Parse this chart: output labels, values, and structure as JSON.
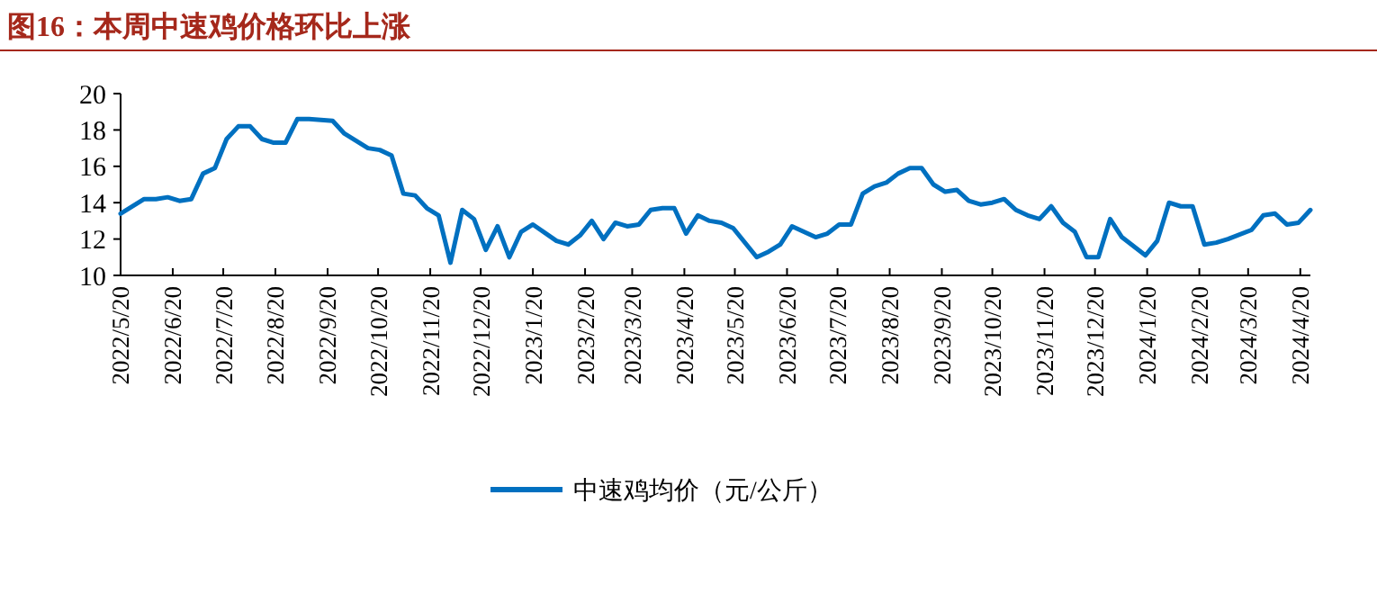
{
  "chart_data": {
    "type": "line",
    "title": "图16：本周中速鸡价格环比上涨",
    "legend": "bottom",
    "grid": false,
    "marker": "none",
    "line_style": "solid",
    "xlim": [
      "2022-05-20",
      "2024-04-26"
    ],
    "ylim": [
      10,
      20
    ],
    "yticks": [
      10,
      12,
      14,
      16,
      18,
      20
    ],
    "xticks": [
      {
        "value": "2022-05-20",
        "label": "2022/5/20"
      },
      {
        "value": "2022-06-20",
        "label": "2022/6/20"
      },
      {
        "value": "2022-07-20",
        "label": "2022/7/20"
      },
      {
        "value": "2022-08-20",
        "label": "2022/8/20"
      },
      {
        "value": "2022-09-20",
        "label": "2022/9/20"
      },
      {
        "value": "2022-10-20",
        "label": "2022/10/20"
      },
      {
        "value": "2022-11-20",
        "label": "2022/11/20"
      },
      {
        "value": "2022-12-20",
        "label": "2022/12/20"
      },
      {
        "value": "2023-01-20",
        "label": "2023/1/20"
      },
      {
        "value": "2023-02-20",
        "label": "2023/2/20"
      },
      {
        "value": "2023-03-20",
        "label": "2023/3/20"
      },
      {
        "value": "2023-04-20",
        "label": "2023/4/20"
      },
      {
        "value": "2023-05-20",
        "label": "2023/5/20"
      },
      {
        "value": "2023-06-20",
        "label": "2023/6/20"
      },
      {
        "value": "2023-07-20",
        "label": "2023/7/20"
      },
      {
        "value": "2023-08-20",
        "label": "2023/8/20"
      },
      {
        "value": "2023-09-20",
        "label": "2023/9/20"
      },
      {
        "value": "2023-10-20",
        "label": "2023/10/20"
      },
      {
        "value": "2023-11-20",
        "label": "2023/11/20"
      },
      {
        "value": "2023-12-20",
        "label": "2023/12/20"
      },
      {
        "value": "2024-01-20",
        "label": "2024/1/20"
      },
      {
        "value": "2024-02-20",
        "label": "2024/2/20"
      },
      {
        "value": "2024-03-20",
        "label": "2024/3/20"
      },
      {
        "value": "2024-04-20",
        "label": "2024/4/20"
      }
    ],
    "x": [
      "2022-05-20",
      "2022-06-03",
      "2022-06-10",
      "2022-06-17",
      "2022-06-24",
      "2022-07-01",
      "2022-07-08",
      "2022-07-15",
      "2022-07-22",
      "2022-07-29",
      "2022-08-05",
      "2022-08-12",
      "2022-08-19",
      "2022-08-26",
      "2022-09-02",
      "2022-09-09",
      "2022-09-23",
      "2022-09-30",
      "2022-10-14",
      "2022-10-21",
      "2022-10-28",
      "2022-11-04",
      "2022-11-11",
      "2022-11-18",
      "2022-11-25",
      "2022-12-02",
      "2022-12-09",
      "2022-12-16",
      "2022-12-23",
      "2022-12-30",
      "2023-01-06",
      "2023-01-13",
      "2023-01-20",
      "2023-02-03",
      "2023-02-10",
      "2023-02-17",
      "2023-02-24",
      "2023-03-03",
      "2023-03-10",
      "2023-03-17",
      "2023-03-24",
      "2023-03-31",
      "2023-04-07",
      "2023-04-14",
      "2023-04-21",
      "2023-04-28",
      "2023-05-05",
      "2023-05-12",
      "2023-05-19",
      "2023-06-02",
      "2023-06-09",
      "2023-06-16",
      "2023-06-23",
      "2023-06-30",
      "2023-07-07",
      "2023-07-14",
      "2023-07-21",
      "2023-07-28",
      "2023-08-04",
      "2023-08-11",
      "2023-08-18",
      "2023-08-25",
      "2023-09-01",
      "2023-09-08",
      "2023-09-15",
      "2023-09-22",
      "2023-09-29",
      "2023-10-06",
      "2023-10-13",
      "2023-10-20",
      "2023-10-27",
      "2023-11-03",
      "2023-11-10",
      "2023-11-17",
      "2023-11-24",
      "2023-12-01",
      "2023-12-08",
      "2023-12-15",
      "2023-12-22",
      "2023-12-29",
      "2024-01-05",
      "2024-01-19",
      "2024-01-26",
      "2024-02-02",
      "2024-02-09",
      "2024-02-16",
      "2024-02-23",
      "2024-03-01",
      "2024-03-08",
      "2024-03-22",
      "2024-03-29",
      "2024-04-05",
      "2024-04-12",
      "2024-04-19",
      "2024-04-26"
    ],
    "series": [
      {
        "name": "中速鸡均价（元/公斤）",
        "color": "#0070c0",
        "values": [
          13.4,
          14.2,
          14.2,
          14.3,
          14.1,
          14.2,
          15.6,
          15.9,
          17.5,
          18.2,
          18.2,
          17.5,
          17.3,
          17.3,
          18.6,
          18.6,
          18.5,
          17.8,
          17.0,
          16.9,
          16.6,
          14.5,
          14.4,
          13.7,
          13.3,
          10.7,
          13.6,
          13.1,
          11.4,
          12.7,
          11.0,
          12.4,
          12.8,
          11.9,
          11.7,
          12.2,
          13.0,
          12.0,
          12.9,
          12.7,
          12.8,
          13.6,
          13.7,
          13.7,
          12.3,
          13.3,
          13.0,
          12.9,
          12.6,
          11.0,
          11.3,
          11.7,
          12.7,
          12.4,
          12.1,
          12.3,
          12.8,
          12.8,
          14.5,
          14.9,
          15.1,
          15.6,
          15.9,
          15.9,
          15.0,
          14.6,
          14.7,
          14.1,
          13.9,
          14.0,
          14.2,
          13.6,
          13.3,
          13.1,
          13.8,
          12.9,
          12.4,
          11.0,
          11.0,
          13.1,
          12.1,
          11.1,
          11.9,
          14.0,
          13.8,
          13.8,
          11.7,
          11.8,
          12.0,
          12.5,
          13.3,
          13.4,
          12.8,
          12.9,
          13.6
        ]
      }
    ]
  }
}
